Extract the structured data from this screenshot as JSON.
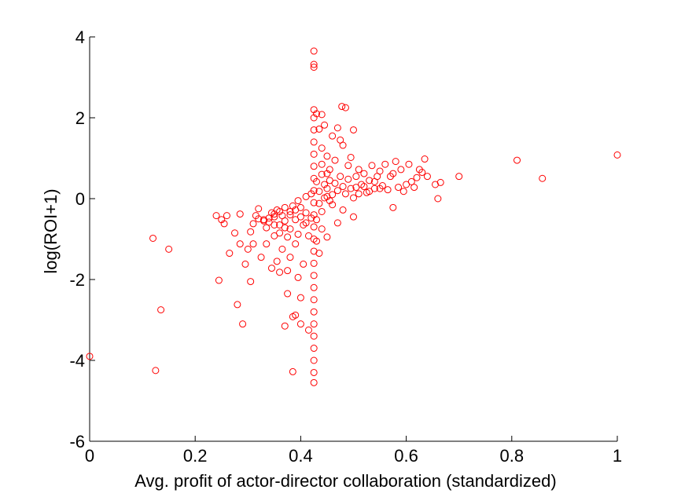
{
  "chart_data": {
    "type": "scatter",
    "title": "",
    "xlabel": "Avg. profit of actor-director collaboration (standardized)",
    "ylabel": "log(ROI+1)",
    "xlim": [
      0,
      1
    ],
    "ylim": [
      -6,
      4
    ],
    "x_ticks": [
      0,
      0.2,
      0.4,
      0.6,
      0.8,
      1
    ],
    "x_tick_labels": [
      "0",
      "0.2",
      "0.4",
      "0.6",
      "0.8",
      "1"
    ],
    "y_ticks": [
      -6,
      -4,
      -2,
      0,
      2,
      4
    ],
    "y_tick_labels": [
      "-6",
      "-4",
      "-2",
      "0",
      "2",
      "4"
    ],
    "grid": false,
    "legend": "none",
    "marker": "open-circle",
    "color": "#ff0000",
    "points": [
      [
        0.0,
        -3.9
      ],
      [
        0.12,
        -0.98
      ],
      [
        0.125,
        -4.25
      ],
      [
        0.135,
        -2.75
      ],
      [
        0.15,
        -1.25
      ],
      [
        0.24,
        -0.42
      ],
      [
        0.245,
        -2.02
      ],
      [
        0.25,
        -0.52
      ],
      [
        0.255,
        -0.62
      ],
      [
        0.26,
        -0.42
      ],
      [
        0.265,
        -1.35
      ],
      [
        0.275,
        -0.85
      ],
      [
        0.28,
        -2.62
      ],
      [
        0.285,
        -0.38
      ],
      [
        0.285,
        -1.12
      ],
      [
        0.29,
        -3.1
      ],
      [
        0.295,
        -1.62
      ],
      [
        0.3,
        -1.25
      ],
      [
        0.305,
        -0.82
      ],
      [
        0.305,
        -2.05
      ],
      [
        0.31,
        -0.62
      ],
      [
        0.31,
        -1.12
      ],
      [
        0.315,
        -0.42
      ],
      [
        0.32,
        -0.25
      ],
      [
        0.325,
        -1.45
      ],
      [
        0.33,
        -0.52
      ],
      [
        0.335,
        -1.12
      ],
      [
        0.335,
        -0.72
      ],
      [
        0.34,
        -0.58
      ],
      [
        0.345,
        -0.35
      ],
      [
        0.345,
        -1.72
      ],
      [
        0.35,
        -0.92
      ],
      [
        0.35,
        -0.45
      ],
      [
        0.355,
        -1.55
      ],
      [
        0.355,
        -0.28
      ],
      [
        0.36,
        -0.65
      ],
      [
        0.36,
        -1.82
      ],
      [
        0.365,
        -0.42
      ],
      [
        0.365,
        -1.25
      ],
      [
        0.37,
        -3.15
      ],
      [
        0.37,
        -0.55
      ],
      [
        0.375,
        -0.95
      ],
      [
        0.375,
        -1.78
      ],
      [
        0.375,
        -2.35
      ],
      [
        0.38,
        -0.32
      ],
      [
        0.38,
        -0.75
      ],
      [
        0.38,
        -1.45
      ],
      [
        0.385,
        -2.92
      ],
      [
        0.385,
        -0.18
      ],
      [
        0.385,
        -4.28
      ],
      [
        0.39,
        -2.88
      ],
      [
        0.39,
        -0.52
      ],
      [
        0.39,
        -1.12
      ],
      [
        0.395,
        -0.05
      ],
      [
        0.395,
        -0.88
      ],
      [
        0.395,
        -1.95
      ],
      [
        0.4,
        -3.1
      ],
      [
        0.4,
        -0.22
      ],
      [
        0.4,
        -2.45
      ],
      [
        0.405,
        -0.65
      ],
      [
        0.405,
        -1.62
      ],
      [
        0.41,
        0.05
      ],
      [
        0.41,
        -0.35
      ],
      [
        0.415,
        -3.25
      ],
      [
        0.415,
        -0.92
      ],
      [
        0.42,
        -0.48
      ],
      [
        0.42,
        0.12
      ],
      [
        0.37,
        -0.22
      ],
      [
        0.36,
        -0.32
      ],
      [
        0.35,
        -0.38
      ],
      [
        0.34,
        -0.48
      ],
      [
        0.33,
        -0.55
      ],
      [
        0.32,
        -0.5
      ],
      [
        0.39,
        -0.28
      ],
      [
        0.38,
        -0.4
      ],
      [
        0.4,
        -0.45
      ],
      [
        0.41,
        -0.6
      ],
      [
        0.37,
        -0.72
      ],
      [
        0.36,
        -0.85
      ],
      [
        0.35,
        -0.65
      ],
      [
        0.425,
        3.65
      ],
      [
        0.425,
        3.32
      ],
      [
        0.425,
        3.25
      ],
      [
        0.425,
        2.2
      ],
      [
        0.425,
        2.0
      ],
      [
        0.425,
        1.7
      ],
      [
        0.425,
        1.4
      ],
      [
        0.425,
        1.1
      ],
      [
        0.425,
        0.8
      ],
      [
        0.425,
        0.5
      ],
      [
        0.425,
        0.2
      ],
      [
        0.425,
        -0.1
      ],
      [
        0.425,
        -0.4
      ],
      [
        0.425,
        -0.7
      ],
      [
        0.425,
        -1.0
      ],
      [
        0.425,
        -1.3
      ],
      [
        0.425,
        -1.6
      ],
      [
        0.425,
        -1.9
      ],
      [
        0.425,
        -2.2
      ],
      [
        0.425,
        -2.5
      ],
      [
        0.425,
        -2.8
      ],
      [
        0.425,
        -3.1
      ],
      [
        0.425,
        -3.4
      ],
      [
        0.425,
        -3.7
      ],
      [
        0.425,
        -4.0
      ],
      [
        0.425,
        -4.3
      ],
      [
        0.425,
        -4.55
      ],
      [
        0.43,
        2.1
      ],
      [
        0.435,
        1.72
      ],
      [
        0.44,
        2.08
      ],
      [
        0.44,
        1.25
      ],
      [
        0.445,
        1.82
      ],
      [
        0.45,
        1.05
      ],
      [
        0.455,
        0.72
      ],
      [
        0.46,
        1.55
      ],
      [
        0.465,
        0.95
      ],
      [
        0.47,
        1.75
      ],
      [
        0.475,
        1.45
      ],
      [
        0.478,
        2.28
      ],
      [
        0.48,
        1.32
      ],
      [
        0.485,
        2.25
      ],
      [
        0.49,
        0.82
      ],
      [
        0.495,
        1.02
      ],
      [
        0.5,
        1.7
      ],
      [
        0.505,
        0.55
      ],
      [
        0.51,
        0.72
      ],
      [
        0.515,
        0.35
      ],
      [
        0.52,
        0.62
      ],
      [
        0.525,
        0.15
      ],
      [
        0.53,
        0.45
      ],
      [
        0.535,
        0.82
      ],
      [
        0.54,
        0.25
      ],
      [
        0.545,
        0.55
      ],
      [
        0.55,
        0.68
      ],
      [
        0.555,
        0.32
      ],
      [
        0.56,
        0.85
      ],
      [
        0.565,
        0.22
      ],
      [
        0.57,
        0.55
      ],
      [
        0.575,
        0.62
      ],
      [
        0.58,
        0.92
      ],
      [
        0.585,
        0.28
      ],
      [
        0.59,
        0.72
      ],
      [
        0.595,
        0.18
      ],
      [
        0.6,
        0.35
      ],
      [
        0.605,
        0.85
      ],
      [
        0.61,
        0.42
      ],
      [
        0.615,
        0.28
      ],
      [
        0.62,
        0.52
      ],
      [
        0.625,
        0.72
      ],
      [
        0.63,
        0.65
      ],
      [
        0.635,
        0.98
      ],
      [
        0.64,
        0.55
      ],
      [
        0.655,
        0.35
      ],
      [
        0.66,
        0.0
      ],
      [
        0.665,
        0.4
      ],
      [
        0.7,
        0.55
      ],
      [
        0.81,
        0.95
      ],
      [
        0.858,
        0.5
      ],
      [
        1.0,
        1.08
      ],
      [
        0.575,
        -0.22
      ],
      [
        0.55,
        0.25
      ],
      [
        0.5,
        0.02
      ],
      [
        0.44,
        -0.32
      ],
      [
        0.46,
        -0.15
      ],
      [
        0.48,
        -0.28
      ],
      [
        0.5,
        -0.45
      ],
      [
        0.47,
        -0.6
      ],
      [
        0.45,
        0.25
      ],
      [
        0.455,
        0.45
      ],
      [
        0.46,
        0.1
      ],
      [
        0.465,
        0.38
      ],
      [
        0.47,
        0.2
      ],
      [
        0.475,
        0.55
      ],
      [
        0.48,
        0.3
      ],
      [
        0.485,
        0.12
      ],
      [
        0.49,
        0.48
      ],
      [
        0.495,
        0.25
      ],
      [
        0.44,
        0.6
      ],
      [
        0.445,
        0.35
      ],
      [
        0.45,
        0.05
      ],
      [
        0.455,
        -0.05
      ],
      [
        0.435,
        0.18
      ],
      [
        0.43,
        0.42
      ],
      [
        0.435,
        -0.12
      ],
      [
        0.44,
        0.85
      ],
      [
        0.445,
        0.02
      ],
      [
        0.45,
        0.62
      ],
      [
        0.43,
        -0.52
      ],
      [
        0.44,
        -0.75
      ],
      [
        0.45,
        -0.95
      ],
      [
        0.435,
        -1.35
      ],
      [
        0.43,
        -1.05
      ],
      [
        0.52,
        0.3
      ],
      [
        0.53,
        0.18
      ],
      [
        0.54,
        0.42
      ],
      [
        0.51,
        0.12
      ],
      [
        0.505,
        0.28
      ]
    ]
  }
}
